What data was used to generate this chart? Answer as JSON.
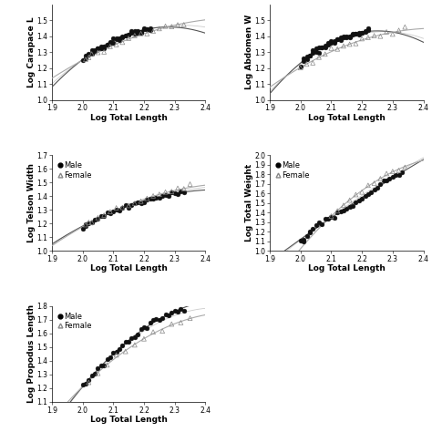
{
  "plots": [
    {
      "ylabel": "Log Carapace L",
      "xlabel": "Log Total Length",
      "xlim": [
        1.9,
        2.4
      ],
      "ylim": [
        1.0,
        1.6
      ],
      "yticks": [
        1.0,
        1.1,
        1.2,
        1.3,
        1.4,
        1.5
      ],
      "xticks": [
        1.9,
        2.0,
        2.1,
        2.2,
        2.3,
        2.4
      ],
      "has_legend": false,
      "male_x": [
        2.0,
        2.01,
        2.01,
        2.02,
        2.02,
        2.03,
        2.03,
        2.04,
        2.04,
        2.05,
        2.05,
        2.06,
        2.06,
        2.07,
        2.07,
        2.08,
        2.08,
        2.09,
        2.09,
        2.1,
        2.1,
        2.11,
        2.11,
        2.12,
        2.12,
        2.13,
        2.13,
        2.14,
        2.14,
        2.15,
        2.15,
        2.16,
        2.16,
        2.17,
        2.17,
        2.18,
        2.18,
        2.19,
        2.19,
        2.2,
        2.2,
        2.21,
        2.21,
        2.22,
        2.22
      ],
      "male_y": [
        1.245,
        1.262,
        1.27,
        1.278,
        1.285,
        1.292,
        1.3,
        1.305,
        1.312,
        1.318,
        1.325,
        1.33,
        1.336,
        1.341,
        1.347,
        1.352,
        1.357,
        1.361,
        1.367,
        1.371,
        1.376,
        1.38,
        1.384,
        1.388,
        1.392,
        1.396,
        1.4,
        1.403,
        1.407,
        1.41,
        1.414,
        1.417,
        1.42,
        1.423,
        1.426,
        1.429,
        1.432,
        1.435,
        1.437,
        1.44,
        1.442,
        1.445,
        1.447,
        1.45,
        1.452
      ],
      "female_x": [
        2.01,
        2.02,
        2.03,
        2.05,
        2.07,
        2.09,
        2.11,
        2.13,
        2.15,
        2.17,
        2.19,
        2.21,
        2.23,
        2.25,
        2.27,
        2.29,
        2.31,
        2.33
      ],
      "female_y": [
        1.26,
        1.27,
        1.28,
        1.295,
        1.315,
        1.333,
        1.35,
        1.367,
        1.382,
        1.396,
        1.409,
        1.422,
        1.434,
        1.445,
        1.455,
        1.464,
        1.473,
        1.481
      ],
      "slope_male": 0.62,
      "intercept_male": 0.0,
      "slope_female": 0.55,
      "intercept_female": 0.0
    },
    {
      "ylabel": "Log Abdomen W",
      "xlabel": "Log Total Length",
      "xlim": [
        1.9,
        2.4
      ],
      "ylim": [
        1.0,
        1.6
      ],
      "yticks": [
        1.0,
        1.1,
        1.2,
        1.3,
        1.4,
        1.5
      ],
      "xticks": [
        1.9,
        2.0,
        2.1,
        2.2,
        2.3,
        2.4
      ],
      "has_legend": false,
      "male_x": [
        2.0,
        2.01,
        2.01,
        2.02,
        2.02,
        2.03,
        2.03,
        2.04,
        2.04,
        2.05,
        2.05,
        2.06,
        2.06,
        2.07,
        2.07,
        2.08,
        2.08,
        2.09,
        2.09,
        2.1,
        2.1,
        2.11,
        2.11,
        2.12,
        2.12,
        2.13,
        2.13,
        2.14,
        2.14,
        2.15,
        2.15,
        2.16,
        2.16,
        2.17,
        2.17,
        2.18,
        2.18,
        2.19,
        2.19,
        2.2,
        2.2,
        2.21,
        2.21,
        2.22,
        2.22
      ],
      "male_y": [
        1.22,
        1.238,
        1.248,
        1.258,
        1.267,
        1.276,
        1.284,
        1.291,
        1.298,
        1.304,
        1.312,
        1.318,
        1.323,
        1.329,
        1.334,
        1.34,
        1.345,
        1.349,
        1.354,
        1.358,
        1.363,
        1.367,
        1.371,
        1.375,
        1.379,
        1.382,
        1.386,
        1.389,
        1.393,
        1.396,
        1.399,
        1.402,
        1.405,
        1.408,
        1.411,
        1.414,
        1.416,
        1.419,
        1.422,
        1.424,
        1.427,
        1.429,
        1.432,
        1.434,
        1.436
      ],
      "female_x": [
        2.0,
        2.02,
        2.04,
        2.06,
        2.08,
        2.1,
        2.12,
        2.14,
        2.16,
        2.18,
        2.2,
        2.22,
        2.24,
        2.26,
        2.28,
        2.3,
        2.32,
        2.34
      ],
      "female_y": [
        1.2,
        1.225,
        1.248,
        1.268,
        1.287,
        1.305,
        1.321,
        1.336,
        1.35,
        1.363,
        1.375,
        1.386,
        1.397,
        1.407,
        1.416,
        1.424,
        1.432,
        1.44
      ],
      "slope_male": 0.6,
      "intercept_male": 0.0,
      "slope_female": 0.58,
      "intercept_female": 0.0
    },
    {
      "ylabel": "Log Telson Width",
      "xlabel": "Log Total Length",
      "xlim": [
        1.9,
        2.4
      ],
      "ylim": [
        1.0,
        1.7
      ],
      "yticks": [
        1.0,
        1.1,
        1.2,
        1.3,
        1.4,
        1.5,
        1.6,
        1.7
      ],
      "xticks": [
        1.9,
        2.0,
        2.1,
        2.2,
        2.3,
        2.4
      ],
      "has_legend": true,
      "male_x": [
        2.0,
        2.01,
        2.01,
        2.02,
        2.03,
        2.04,
        2.05,
        2.06,
        2.07,
        2.08,
        2.09,
        2.1,
        2.11,
        2.12,
        2.13,
        2.14,
        2.15,
        2.16,
        2.17,
        2.18,
        2.19,
        2.2,
        2.21,
        2.22,
        2.23,
        2.24,
        2.25,
        2.26,
        2.27,
        2.28,
        2.29,
        2.3,
        2.31,
        2.32,
        2.33
      ],
      "male_y": [
        1.17,
        1.185,
        1.195,
        1.205,
        1.218,
        1.23,
        1.242,
        1.252,
        1.262,
        1.271,
        1.28,
        1.289,
        1.298,
        1.306,
        1.314,
        1.322,
        1.33,
        1.337,
        1.344,
        1.351,
        1.358,
        1.364,
        1.371,
        1.377,
        1.383,
        1.389,
        1.394,
        1.4,
        1.405,
        1.41,
        1.415,
        1.42,
        1.425,
        1.43,
        1.434
      ],
      "female_x": [
        2.01,
        2.02,
        2.03,
        2.05,
        2.07,
        2.09,
        2.11,
        2.13,
        2.15,
        2.17,
        2.19,
        2.21,
        2.23,
        2.25,
        2.27,
        2.29,
        2.31,
        2.33,
        2.35
      ],
      "female_y": [
        1.185,
        1.2,
        1.215,
        1.235,
        1.258,
        1.28,
        1.3,
        1.32,
        1.338,
        1.355,
        1.37,
        1.385,
        1.4,
        1.412,
        1.424,
        1.435,
        1.447,
        1.457,
        1.467
      ],
      "slope_male": 0.88,
      "intercept_male": 0.0,
      "slope_female": 0.85,
      "intercept_female": 0.0
    },
    {
      "ylabel": "Log Total Weight",
      "xlabel": "Log Total Length",
      "xlim": [
        1.9,
        2.4
      ],
      "ylim": [
        1.0,
        2.0
      ],
      "yticks": [
        1.0,
        1.1,
        1.2,
        1.3,
        1.4,
        1.5,
        1.6,
        1.7,
        1.8,
        1.9,
        2.0
      ],
      "xticks": [
        1.9,
        2.0,
        2.1,
        2.2,
        2.3,
        2.4
      ],
      "has_legend": true,
      "male_x": [
        2.0,
        2.01,
        2.01,
        2.02,
        2.03,
        2.03,
        2.04,
        2.05,
        2.06,
        2.07,
        2.08,
        2.09,
        2.1,
        2.11,
        2.12,
        2.13,
        2.14,
        2.15,
        2.16,
        2.17,
        2.18,
        2.19,
        2.2,
        2.21,
        2.22,
        2.23,
        2.24,
        2.25,
        2.26,
        2.27,
        2.28,
        2.29,
        2.3,
        2.31,
        2.32,
        2.33
      ],
      "male_y": [
        1.1,
        1.12,
        1.11,
        1.15,
        1.19,
        1.2,
        1.23,
        1.27,
        1.3,
        1.29,
        1.34,
        1.33,
        1.35,
        1.36,
        1.4,
        1.41,
        1.43,
        1.44,
        1.46,
        1.48,
        1.5,
        1.52,
        1.54,
        1.57,
        1.6,
        1.62,
        1.64,
        1.66,
        1.69,
        1.71,
        1.73,
        1.75,
        1.77,
        1.79,
        1.8,
        1.82
      ],
      "female_x": [
        2.1,
        2.12,
        2.14,
        2.16,
        2.18,
        2.2,
        2.22,
        2.24,
        2.26,
        2.28,
        2.3,
        2.32,
        2.34
      ],
      "female_y": [
        1.37,
        1.42,
        1.48,
        1.53,
        1.57,
        1.63,
        1.68,
        1.72,
        1.76,
        1.8,
        1.83,
        1.85,
        1.88
      ],
      "slope_male": 2.85,
      "intercept_male": 0.0,
      "slope_female": 2.9,
      "intercept_female": 0.0
    },
    {
      "ylabel": "Log Propodus Length",
      "xlabel": "Log Total Length",
      "xlim": [
        1.9,
        2.4
      ],
      "ylim": [
        1.1,
        1.8
      ],
      "yticks": [
        1.1,
        1.2,
        1.3,
        1.4,
        1.5,
        1.6,
        1.7,
        1.8
      ],
      "xticks": [
        1.9,
        2.0,
        2.1,
        2.2,
        2.3,
        2.4
      ],
      "has_legend": true,
      "male_x": [
        2.0,
        2.01,
        2.02,
        2.03,
        2.04,
        2.05,
        2.06,
        2.07,
        2.08,
        2.09,
        2.1,
        2.11,
        2.12,
        2.13,
        2.14,
        2.15,
        2.16,
        2.17,
        2.18,
        2.19,
        2.2,
        2.21,
        2.22,
        2.23,
        2.24,
        2.25,
        2.26,
        2.27,
        2.28,
        2.29,
        2.3,
        2.31,
        2.32,
        2.33
      ],
      "male_y": [
        1.22,
        1.24,
        1.26,
        1.29,
        1.31,
        1.33,
        1.36,
        1.38,
        1.41,
        1.43,
        1.45,
        1.47,
        1.49,
        1.51,
        1.53,
        1.55,
        1.57,
        1.58,
        1.6,
        1.62,
        1.64,
        1.65,
        1.67,
        1.68,
        1.7,
        1.71,
        1.72,
        1.73,
        1.74,
        1.75,
        1.76,
        1.77,
        1.78,
        1.79
      ],
      "female_x": [
        2.02,
        2.05,
        2.08,
        2.11,
        2.14,
        2.17,
        2.2,
        2.23,
        2.26,
        2.29,
        2.32,
        2.35
      ],
      "female_y": [
        1.25,
        1.31,
        1.38,
        1.43,
        1.48,
        1.52,
        1.56,
        1.6,
        1.63,
        1.66,
        1.68,
        1.72
      ],
      "slope_male": 1.65,
      "intercept_male": 0.0,
      "slope_female": 1.55,
      "intercept_female": 0.0
    }
  ],
  "background_color": "#ffffff",
  "male_marker": "o",
  "female_marker": "^",
  "male_color": "#111111",
  "female_color": "#888888",
  "male_markersize": 3.5,
  "female_markersize": 3.5,
  "line_color_dark": "#555555",
  "line_color_light": "#aaaaaa",
  "line_width": 0.8,
  "tick_fontsize": 5.5,
  "label_fontsize": 6.5,
  "legend_fontsize": 6
}
